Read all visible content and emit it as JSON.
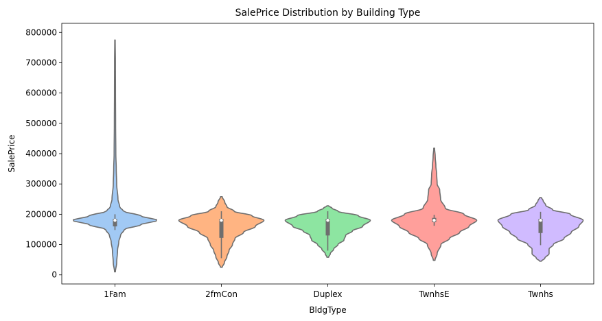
{
  "chart_data": {
    "type": "violin",
    "title": "SalePrice Distribution by Building Type",
    "xlabel": "BldgType",
    "ylabel": "SalePrice",
    "ylim": [
      -30000,
      830000
    ],
    "yticks": [
      0,
      100000,
      200000,
      300000,
      400000,
      500000,
      600000,
      700000,
      800000
    ],
    "ytick_labels": [
      "0",
      "100000",
      "200000",
      "300000",
      "400000",
      "500000",
      "600000",
      "700000",
      "800000"
    ],
    "categories": [
      "1Fam",
      "2fmCon",
      "Duplex",
      "TwnhsE",
      "Twnhs"
    ],
    "grid": false,
    "series": [
      {
        "category": "1Fam",
        "color": "#a1c9f4",
        "min": 10000,
        "max": 775000,
        "q1": 160000,
        "median": 180000,
        "q3": 185000,
        "whisker_low": 148000,
        "whisker_high": 200000,
        "profile": [
          [
            10000,
            0.01
          ],
          [
            40000,
            0.04
          ],
          [
            80000,
            0.06
          ],
          [
            110000,
            0.09
          ],
          [
            130000,
            0.13
          ],
          [
            150000,
            0.22
          ],
          [
            165000,
            0.6
          ],
          [
            180000,
            1.0
          ],
          [
            195000,
            0.6
          ],
          [
            210000,
            0.2
          ],
          [
            225000,
            0.11
          ],
          [
            250000,
            0.07
          ],
          [
            300000,
            0.04
          ],
          [
            350000,
            0.03
          ],
          [
            400000,
            0.02
          ],
          [
            500000,
            0.015
          ],
          [
            600000,
            0.012
          ],
          [
            700000,
            0.01
          ],
          [
            775000,
            0.005
          ]
        ]
      },
      {
        "category": "2fmCon",
        "color": "#ffb482",
        "min": 25000,
        "max": 258000,
        "q1": 122000,
        "median": 180000,
        "q3": 185000,
        "whisker_low": 55000,
        "whisker_high": 210000,
        "profile": [
          [
            25000,
            0.02
          ],
          [
            40000,
            0.07
          ],
          [
            60000,
            0.13
          ],
          [
            80000,
            0.18
          ],
          [
            100000,
            0.26
          ],
          [
            120000,
            0.32
          ],
          [
            140000,
            0.52
          ],
          [
            160000,
            0.8
          ],
          [
            180000,
            1.0
          ],
          [
            195000,
            0.72
          ],
          [
            210000,
            0.3
          ],
          [
            225000,
            0.13
          ],
          [
            240000,
            0.08
          ],
          [
            258000,
            0.02
          ]
        ]
      },
      {
        "category": "Duplex",
        "color": "#8de5a1",
        "min": 58000,
        "max": 228000,
        "q1": 130000,
        "median": 180000,
        "q3": 185000,
        "whisker_low": 80000,
        "whisker_high": 210000,
        "profile": [
          [
            58000,
            0.02
          ],
          [
            70000,
            0.06
          ],
          [
            85000,
            0.14
          ],
          [
            100000,
            0.24
          ],
          [
            115000,
            0.38
          ],
          [
            130000,
            0.42
          ],
          [
            145000,
            0.58
          ],
          [
            160000,
            0.82
          ],
          [
            180000,
            1.0
          ],
          [
            195000,
            0.72
          ],
          [
            210000,
            0.24
          ],
          [
            220000,
            0.1
          ],
          [
            228000,
            0.02
          ]
        ]
      },
      {
        "category": "TwnhsE",
        "color": "#ff9f9b",
        "min": 48000,
        "max": 418000,
        "q1": 174000,
        "median": 180000,
        "q3": 188000,
        "whisker_low": 162000,
        "whisker_high": 198000,
        "profile": [
          [
            48000,
            0.02
          ],
          [
            70000,
            0.07
          ],
          [
            100000,
            0.16
          ],
          [
            120000,
            0.36
          ],
          [
            140000,
            0.6
          ],
          [
            160000,
            0.82
          ],
          [
            180000,
            1.0
          ],
          [
            200000,
            0.7
          ],
          [
            220000,
            0.26
          ],
          [
            250000,
            0.15
          ],
          [
            280000,
            0.13
          ],
          [
            300000,
            0.07
          ],
          [
            330000,
            0.06
          ],
          [
            360000,
            0.04
          ],
          [
            390000,
            0.025
          ],
          [
            418000,
            0.01
          ]
        ]
      },
      {
        "category": "Twnhs",
        "color": "#d0bbff",
        "min": 45000,
        "max": 255000,
        "q1": 138000,
        "median": 180000,
        "q3": 185000,
        "whisker_low": 98000,
        "whisker_high": 208000,
        "profile": [
          [
            45000,
            0.02
          ],
          [
            55000,
            0.1
          ],
          [
            70000,
            0.2
          ],
          [
            85000,
            0.2
          ],
          [
            100000,
            0.3
          ],
          [
            120000,
            0.55
          ],
          [
            140000,
            0.72
          ],
          [
            160000,
            0.9
          ],
          [
            180000,
            1.0
          ],
          [
            200000,
            0.7
          ],
          [
            215000,
            0.28
          ],
          [
            230000,
            0.12
          ],
          [
            245000,
            0.06
          ],
          [
            255000,
            0.02
          ]
        ]
      }
    ]
  }
}
